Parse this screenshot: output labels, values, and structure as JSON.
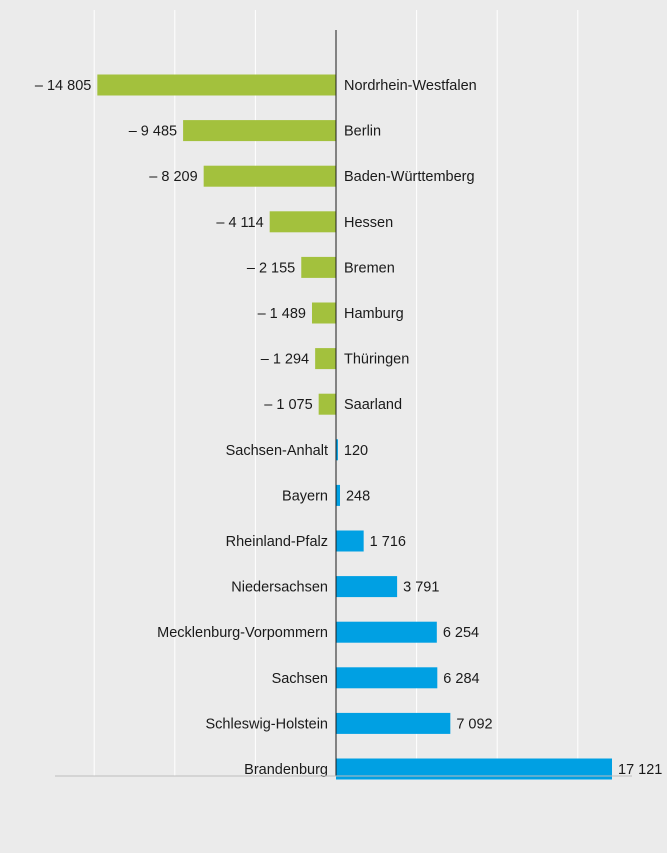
{
  "chart_data": {
    "type": "bar",
    "orientation": "horizontal",
    "title": "",
    "xlabel": "",
    "ylabel": "",
    "xlim": [
      -15500,
      17500
    ],
    "grid": true,
    "legend": "none",
    "colors": {
      "negative": "#a3c13d",
      "positive": "#00a0e3",
      "axis": "#1a1a1a",
      "grid": "#ffffff",
      "background": "#ebebeb"
    },
    "categories": [
      "Nordrhein-Westfalen",
      "Berlin",
      "Baden-Württemberg",
      "Hessen",
      "Bremen",
      "Hamburg",
      "Thüringen",
      "Saarland",
      "Sachsen-Anhalt",
      "Bayern",
      "Rheinland-Pfalz",
      "Niedersachsen",
      "Mecklenburg-Vorpommern",
      "Sachsen",
      "Schleswig-Holstein",
      "Brandenburg"
    ],
    "values": [
      -14805,
      -9485,
      -8209,
      -4114,
      -2155,
      -1489,
      -1294,
      -1075,
      120,
      248,
      1716,
      3791,
      6254,
      6284,
      7092,
      17121
    ],
    "value_labels": [
      "– 14 805",
      "– 9 485",
      "– 8 209",
      "– 4 114",
      "– 2 155",
      "– 1 489",
      "– 1 294",
      "– 1 075",
      "120",
      "248",
      "1 716",
      "3 791",
      "6 254",
      "6 284",
      "7 092",
      "17 121"
    ]
  }
}
